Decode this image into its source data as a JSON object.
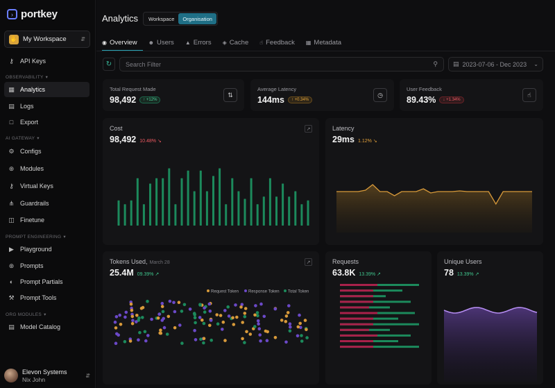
{
  "brand": {
    "name": "portkey"
  },
  "workspace": {
    "label": "My Workspace"
  },
  "sidebar": {
    "top_items": [
      {
        "label": "API Keys",
        "icon": "key-icon"
      }
    ],
    "sections": [
      {
        "label": "OBSERVABILITY",
        "items": [
          {
            "label": "Analytics",
            "icon": "bar-chart-icon",
            "active": true
          },
          {
            "label": "Logs",
            "icon": "logs-icon"
          },
          {
            "label": "Export",
            "icon": "export-icon"
          }
        ]
      },
      {
        "label": "AI GATEWAY",
        "items": [
          {
            "label": "Configs",
            "icon": "gear-icon"
          },
          {
            "label": "Modules",
            "icon": "modules-icon"
          },
          {
            "label": "Virtual Keys",
            "icon": "key-icon"
          },
          {
            "label": "Guardrails",
            "icon": "guardrails-icon"
          },
          {
            "label": "Finetune",
            "icon": "finetune-icon"
          }
        ]
      },
      {
        "label": "PROMPT ENGINEERING",
        "items": [
          {
            "label": "Playground",
            "icon": "playground-icon"
          },
          {
            "label": "Prompts",
            "icon": "prompts-icon"
          },
          {
            "label": "Prompt Partials",
            "icon": "partials-icon"
          },
          {
            "label": "Prompt Tools",
            "icon": "tools-icon"
          }
        ]
      },
      {
        "label": "ORG MODULES",
        "items": [
          {
            "label": "Model Catalog",
            "icon": "catalog-icon"
          }
        ]
      }
    ]
  },
  "user": {
    "name": "Elevon Systems",
    "sub": "Nix John"
  },
  "header": {
    "title": "Analytics",
    "toggle": [
      "Workspace",
      "Organisation"
    ],
    "toggle_active": "Organisation"
  },
  "tabs": [
    {
      "label": "Overview",
      "active": true
    },
    {
      "label": "Users"
    },
    {
      "label": "Errors"
    },
    {
      "label": "Cache"
    },
    {
      "label": "Feedback"
    },
    {
      "label": "Metadata"
    }
  ],
  "search": {
    "placeholder": "Search Filter"
  },
  "date_range": {
    "label": "2023-07-06 - Dec 2023"
  },
  "stats": [
    {
      "label": "Total Request Made",
      "value": "98,492",
      "delta": "↑ +12%",
      "tone": "green"
    },
    {
      "label": "Average Latency",
      "value": "144ms",
      "delta": "↑ +0.34%",
      "tone": "orange"
    },
    {
      "label": "User Feedback",
      "value": "89.43%",
      "delta": "↓ +1.34%",
      "tone": "red"
    }
  ],
  "cards": {
    "cost": {
      "title": "Cost",
      "value": "98,492",
      "delta": "10.48% ↘"
    },
    "latency": {
      "title": "Latency",
      "value": "29ms",
      "delta": "1.12% ↘"
    },
    "tokens": {
      "title": "Tokens Used,",
      "sub": "March 28",
      "value": "25.4M",
      "delta": "09.39% ↗"
    },
    "requests": {
      "title": "Requests",
      "value": "63.8K",
      "delta": "13.39% ↗"
    },
    "users": {
      "title": "Unique Users",
      "value": "78",
      "delta": "13.39% ↗"
    }
  },
  "colors": {
    "accent": "#1f6f86",
    "green": "#1c8a5c",
    "orange": "#d89a3a",
    "purple": "#b48cf0",
    "red": "#a8214a"
  },
  "chart_data": [
    {
      "type": "bar",
      "name": "cost",
      "values": [
        0.33,
        0.28,
        0.33,
        0.62,
        0.28,
        0.55,
        0.62,
        0.62,
        0.75,
        0.28,
        0.62,
        0.72,
        0.45,
        0.72,
        0.45,
        0.65,
        0.75,
        0.28,
        0.62,
        0.45,
        0.35,
        0.62,
        0.28,
        0.38,
        0.62,
        0.38,
        0.55,
        0.38,
        0.45,
        0.28,
        0.33
      ]
    },
    {
      "type": "area",
      "name": "latency",
      "values": [
        0.46,
        0.46,
        0.46,
        0.46,
        0.44,
        0.36,
        0.46,
        0.46,
        0.52,
        0.46,
        0.46,
        0.46,
        0.42,
        0.48,
        0.46,
        0.46,
        0.46,
        0.45,
        0.46,
        0.46,
        0.46,
        0.46,
        0.64,
        0.46,
        0.46,
        0.46,
        0.46,
        0.46
      ]
    },
    {
      "type": "scatter",
      "name": "tokens",
      "legend": [
        "Request Token",
        "Response Token",
        "Total Token"
      ]
    },
    {
      "type": "bar",
      "name": "requests"
    },
    {
      "type": "area",
      "name": "unique-users"
    }
  ]
}
